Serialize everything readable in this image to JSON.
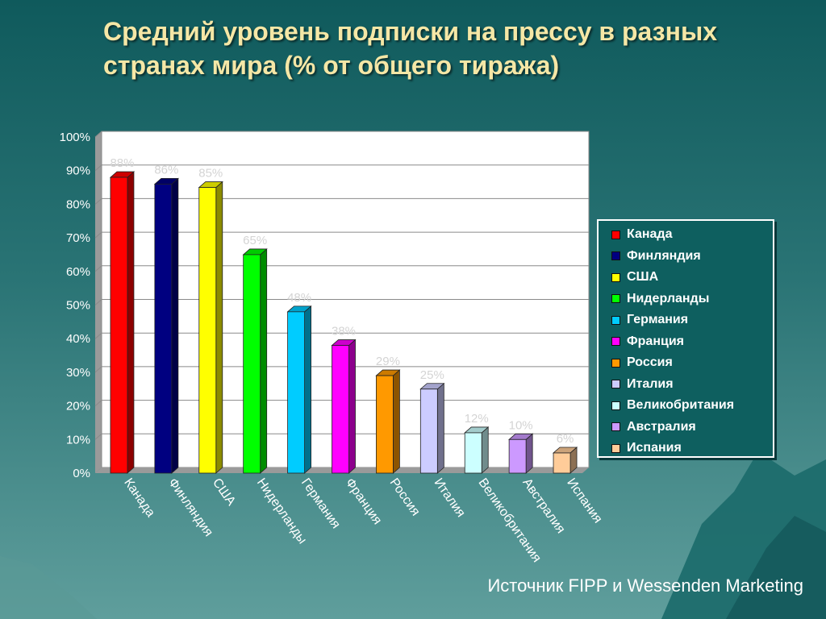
{
  "title_lines": [
    "Средний уровень подписки на прессу в разных",
    "странах мира (% от общего тиража)"
  ],
  "source": "Источник FIPP и Wessenden Marketing",
  "chart_data": {
    "type": "bar",
    "title": "Средний уровень подписки на прессу в разных странах мира (% от общего тиража)",
    "categories": [
      "Канада",
      "Финляндия",
      "США",
      "Нидерланды",
      "Германия",
      "Франция",
      "Россия",
      "Италия",
      "Великобритания",
      "Австралия",
      "Испания"
    ],
    "values": [
      88,
      86,
      85,
      65,
      48,
      38,
      29,
      25,
      12,
      10,
      6
    ],
    "data_labels": [
      "88%",
      "86%",
      "85%",
      "65%",
      "48%",
      "38%",
      "29%",
      "25%",
      "12%",
      "10%",
      "6%"
    ],
    "colors": [
      "#ff0000",
      "#000080",
      "#ffff00",
      "#00ff00",
      "#00ccff",
      "#ff00ff",
      "#ff9900",
      "#ccccff",
      "#ccffff",
      "#cc99ff",
      "#ffcc99"
    ],
    "ylim": [
      0,
      100
    ],
    "y_ticks": [
      "0%",
      "10%",
      "20%",
      "30%",
      "40%",
      "50%",
      "60%",
      "70%",
      "80%",
      "90%",
      "100%"
    ],
    "grid": true,
    "legend_placement": "right"
  }
}
